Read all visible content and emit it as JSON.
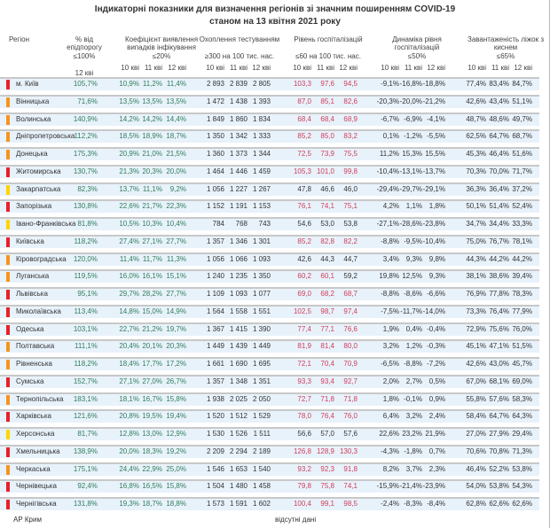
{
  "title_line1": "Індикаторні показники для визначення регіонів зі значним поширенням COVID-19",
  "title_line2": "станом на 13 квітня 2021 року",
  "headers": {
    "region": "Регіон",
    "epi": "% від епідпорогу",
    "epi_norm": "≤100%",
    "epi_day": "12 кві",
    "coef": "Коефіцієнт виявлення випадків інфікування",
    "coef_norm": "≤20%",
    "test": "Охоплення тестуванням",
    "test_norm": "≥300 на 100 тис. нас.",
    "hosp": "Рівень госпіталізацій",
    "hosp_norm": "≤60 на 100 тис. нас.",
    "dyn": "Динаміка рівня госпіталізацій",
    "dyn_norm": "≤50%",
    "beds": "Завантаженість ліжок з киснем",
    "beds_norm": "≤65%",
    "days": [
      "10 кві",
      "11 кві",
      "12 кві"
    ]
  },
  "colors": {
    "red": "#e8202a",
    "orange": "#f7941d",
    "yellow": "#ffd500",
    "good_text": "#2f7d5a",
    "bad_text": "#d23c5a"
  },
  "rows": [
    {
      "region": "м. Київ",
      "level": "red",
      "epi": "105,7%",
      "coef": [
        "10,9%",
        "11,2%",
        "11,4%"
      ],
      "test": [
        "2 893",
        "2 839",
        "2 805"
      ],
      "hosp": [
        "103,3",
        "97,6",
        "94,5"
      ],
      "dyn": [
        "-9,1%",
        "-16,8%",
        "-18,8%"
      ],
      "beds": [
        "77,4%",
        "83,4%",
        "84,7%"
      ]
    },
    {
      "region": "Вінницька",
      "level": "orange",
      "epi": "71,6%",
      "coef": [
        "13,5%",
        "13,5%",
        "13,5%"
      ],
      "test": [
        "1 472",
        "1 438",
        "1 393"
      ],
      "hosp": [
        "87,0",
        "85,1",
        "82,6"
      ],
      "dyn": [
        "-20,3%",
        "-20,0%",
        "-21,2%"
      ],
      "beds": [
        "42,6%",
        "43,4%",
        "51,1%"
      ]
    },
    {
      "region": "Волинська",
      "level": "orange",
      "epi": "140,9%",
      "coef": [
        "14,2%",
        "14,2%",
        "14,4%"
      ],
      "test": [
        "1 849",
        "1 860",
        "1 834"
      ],
      "hosp": [
        "68,4",
        "68,4",
        "68,9"
      ],
      "dyn": [
        "-6,7%",
        "-6,9%",
        "-4,1%"
      ],
      "beds": [
        "48,7%",
        "48,6%",
        "49,7%"
      ]
    },
    {
      "region": "Дніпропетровська",
      "level": "orange",
      "epi": "112,2%",
      "coef": [
        "18,5%",
        "18,9%",
        "18,7%"
      ],
      "test": [
        "1 350",
        "1 342",
        "1 333"
      ],
      "hosp": [
        "85,2",
        "85,0",
        "83,2"
      ],
      "dyn": [
        "0,1%",
        "-1,2%",
        "-5,5%"
      ],
      "beds": [
        "62,5%",
        "64,7%",
        "68,7%"
      ]
    },
    {
      "region": "Донецька",
      "level": "orange",
      "epi": "175,3%",
      "coef": [
        "20,9%",
        "21,0%",
        "21,5%"
      ],
      "test": [
        "1 360",
        "1 373",
        "1 344"
      ],
      "hosp": [
        "72,5",
        "73,9",
        "75,5"
      ],
      "dyn": [
        "11,2%",
        "15,3%",
        "15,5%"
      ],
      "beds": [
        "45,3%",
        "46,4%",
        "51,6%"
      ]
    },
    {
      "region": "Житомирська",
      "level": "red",
      "epi": "130,7%",
      "coef": [
        "21,3%",
        "20,3%",
        "20,0%"
      ],
      "test": [
        "1 464",
        "1 446",
        "1 459"
      ],
      "hosp": [
        "105,3",
        "101,0",
        "99,8"
      ],
      "dyn": [
        "-10,4%",
        "-13,1%",
        "-13,7%"
      ],
      "beds": [
        "70,3%",
        "70,0%",
        "71,7%"
      ]
    },
    {
      "region": "Закарпатська",
      "level": "yellow",
      "epi": "82,3%",
      "coef": [
        "13,7%",
        "11,1%",
        "9,2%"
      ],
      "test": [
        "1 056",
        "1 227",
        "1 267"
      ],
      "hosp": [
        "47,8",
        "46,6",
        "46,0"
      ],
      "dyn": [
        "-29,4%",
        "-29,7%",
        "-29,1%"
      ],
      "beds": [
        "36,3%",
        "36,4%",
        "37,2%"
      ]
    },
    {
      "region": "Запорізька",
      "level": "red",
      "epi": "130,8%",
      "coef": [
        "22,6%",
        "21,7%",
        "22,3%"
      ],
      "test": [
        "1 152",
        "1 191",
        "1 153"
      ],
      "hosp": [
        "76,1",
        "74,1",
        "75,1"
      ],
      "dyn": [
        "4,2%",
        "1,1%",
        "1,8%"
      ],
      "beds": [
        "50,1%",
        "51,4%",
        "52,4%"
      ]
    },
    {
      "region": "Івано-Франківська",
      "level": "yellow",
      "epi": "81,8%",
      "coef": [
        "10,5%",
        "10,3%",
        "10,4%"
      ],
      "test": [
        "784",
        "768",
        "743"
      ],
      "hosp": [
        "54,6",
        "53,0",
        "53,8"
      ],
      "dyn": [
        "-27,1%",
        "-28,6%",
        "-23,8%"
      ],
      "beds": [
        "34,7%",
        "34,4%",
        "33,3%"
      ]
    },
    {
      "region": "Київська",
      "level": "red",
      "epi": "118,2%",
      "coef": [
        "27,4%",
        "27,1%",
        "27,7%"
      ],
      "test": [
        "1 357",
        "1 346",
        "1 301"
      ],
      "hosp": [
        "85,2",
        "82,8",
        "82,2"
      ],
      "dyn": [
        "-8,8%",
        "-9,5%",
        "-10,4%"
      ],
      "beds": [
        "75,0%",
        "76,7%",
        "78,1%"
      ]
    },
    {
      "region": "Кіровоградська",
      "level": "orange",
      "epi": "120,0%",
      "coef": [
        "11,4%",
        "11,7%",
        "11,3%"
      ],
      "test": [
        "1 056",
        "1 066",
        "1 093"
      ],
      "hosp": [
        "42,6",
        "44,3",
        "44,7"
      ],
      "dyn": [
        "3,4%",
        "9,3%",
        "9,8%"
      ],
      "beds": [
        "44,3%",
        "44,2%",
        "44,2%"
      ]
    },
    {
      "region": "Луганська",
      "level": "orange",
      "epi": "119,5%",
      "coef": [
        "16,0%",
        "16,1%",
        "15,1%"
      ],
      "test": [
        "1 240",
        "1 235",
        "1 350"
      ],
      "hosp": [
        "60,2",
        "60,1",
        "59,2"
      ],
      "dyn": [
        "19,8%",
        "12,5%",
        "9,3%"
      ],
      "beds": [
        "38,1%",
        "38,6%",
        "39,4%"
      ]
    },
    {
      "region": "Львівська",
      "level": "red",
      "epi": "95,1%",
      "coef": [
        "29,7%",
        "28,2%",
        "27,7%"
      ],
      "test": [
        "1 109",
        "1 093",
        "1 077"
      ],
      "hosp": [
        "69,0",
        "68,2",
        "68,7"
      ],
      "dyn": [
        "-8,8%",
        "-8,6%",
        "-6,6%"
      ],
      "beds": [
        "76,9%",
        "77,8%",
        "78,3%"
      ]
    },
    {
      "region": "Миколаївська",
      "level": "red",
      "epi": "113,4%",
      "coef": [
        "14,8%",
        "15,0%",
        "14,9%"
      ],
      "test": [
        "1 564",
        "1 558",
        "1 551"
      ],
      "hosp": [
        "102,5",
        "98,7",
        "97,4"
      ],
      "dyn": [
        "-7,5%",
        "-11,7%",
        "-14,0%"
      ],
      "beds": [
        "73,3%",
        "76,4%",
        "77,9%"
      ]
    },
    {
      "region": "Одеська",
      "level": "red",
      "epi": "103,1%",
      "coef": [
        "22,7%",
        "21,2%",
        "19,7%"
      ],
      "test": [
        "1 367",
        "1 415",
        "1 390"
      ],
      "hosp": [
        "77,4",
        "77,1",
        "76,6"
      ],
      "dyn": [
        "1,9%",
        "0,4%",
        "-0,4%"
      ],
      "beds": [
        "72,9%",
        "75,6%",
        "76,0%"
      ]
    },
    {
      "region": "Полтавська",
      "level": "orange",
      "epi": "111,1%",
      "coef": [
        "20,4%",
        "20,1%",
        "20,3%"
      ],
      "test": [
        "1 449",
        "1 439",
        "1 449"
      ],
      "hosp": [
        "81,9",
        "81,4",
        "80,0"
      ],
      "dyn": [
        "3,2%",
        "1,2%",
        "-0,3%"
      ],
      "beds": [
        "45,1%",
        "47,1%",
        "51,5%"
      ]
    },
    {
      "region": "Рівненська",
      "level": "orange",
      "epi": "118,2%",
      "coef": [
        "18,4%",
        "17,7%",
        "17,2%"
      ],
      "test": [
        "1 661",
        "1 690",
        "1 695"
      ],
      "hosp": [
        "72,1",
        "70,4",
        "70,9"
      ],
      "dyn": [
        "-6,5%",
        "-8,8%",
        "-7,2%"
      ],
      "beds": [
        "42,6%",
        "43,0%",
        "45,7%"
      ]
    },
    {
      "region": "Сумська",
      "level": "red",
      "epi": "152,7%",
      "coef": [
        "27,1%",
        "27,0%",
        "26,7%"
      ],
      "test": [
        "1 357",
        "1 348",
        "1 351"
      ],
      "hosp": [
        "93,3",
        "93,4",
        "92,7"
      ],
      "dyn": [
        "2,0%",
        "2,7%",
        "0,5%"
      ],
      "beds": [
        "67,0%",
        "68,1%",
        "69,0%"
      ]
    },
    {
      "region": "Тернопільська",
      "level": "orange",
      "epi": "183,1%",
      "coef": [
        "18,1%",
        "16,7%",
        "15,8%"
      ],
      "test": [
        "1 938",
        "2 025",
        "2 050"
      ],
      "hosp": [
        "72,7",
        "71,8",
        "71,8"
      ],
      "dyn": [
        "1,8%",
        "-0,1%",
        "0,9%"
      ],
      "beds": [
        "55,8%",
        "57,6%",
        "58,3%"
      ]
    },
    {
      "region": "Харківська",
      "level": "red",
      "epi": "121,6%",
      "coef": [
        "20,8%",
        "19,5%",
        "19,4%"
      ],
      "test": [
        "1 520",
        "1 512",
        "1 529"
      ],
      "hosp": [
        "78,0",
        "76,4",
        "76,0"
      ],
      "dyn": [
        "6,4%",
        "3,2%",
        "2,4%"
      ],
      "beds": [
        "58,4%",
        "64,7%",
        "64,3%"
      ]
    },
    {
      "region": "Херсонська",
      "level": "yellow",
      "epi": "81,7%",
      "coef": [
        "12,8%",
        "13,0%",
        "12,9%"
      ],
      "test": [
        "1 530",
        "1 526",
        "1 511"
      ],
      "hosp": [
        "56,6",
        "57,0",
        "57,6"
      ],
      "dyn": [
        "22,6%",
        "23,2%",
        "21,9%"
      ],
      "beds": [
        "27,0%",
        "27,9%",
        "29,4%"
      ]
    },
    {
      "region": "Хмельницька",
      "level": "red",
      "epi": "138,9%",
      "coef": [
        "20,0%",
        "18,3%",
        "19,2%"
      ],
      "test": [
        "2 209",
        "2 294",
        "2 189"
      ],
      "hosp": [
        "126,8",
        "128,9",
        "130,3"
      ],
      "dyn": [
        "-4,3%",
        "-1,8%",
        "0,7%"
      ],
      "beds": [
        "70,6%",
        "70,8%",
        "71,3%"
      ]
    },
    {
      "region": "Черкаська",
      "level": "orange",
      "epi": "175,1%",
      "coef": [
        "24,4%",
        "22,9%",
        "25,0%"
      ],
      "test": [
        "1 546",
        "1 653",
        "1 540"
      ],
      "hosp": [
        "93,2",
        "92,3",
        "91,8"
      ],
      "dyn": [
        "8,2%",
        "3,7%",
        "2,3%"
      ],
      "beds": [
        "46,4%",
        "52,2%",
        "53,8%"
      ]
    },
    {
      "region": "Чернівецька",
      "level": "red",
      "epi": "92,4%",
      "coef": [
        "16,8%",
        "16,5%",
        "15,8%"
      ],
      "test": [
        "1 504",
        "1 480",
        "1 458"
      ],
      "hosp": [
        "79,8",
        "75,8",
        "74,1"
      ],
      "dyn": [
        "-15,9%",
        "-21,4%",
        "-23,9%"
      ],
      "beds": [
        "54,0%",
        "53,8%",
        "54,3%"
      ]
    },
    {
      "region": "Чернігівська",
      "level": "red",
      "epi": "131,8%",
      "coef": [
        "19,3%",
        "18,7%",
        "18,8%"
      ],
      "test": [
        "1 573",
        "1 591",
        "1 602"
      ],
      "hosp": [
        "100,4",
        "99,1",
        "98,5"
      ],
      "dyn": [
        "-2,4%",
        "-8,3%",
        "-8,4%"
      ],
      "beds": [
        "62,8%",
        "62,6%",
        "62,6%"
      ]
    }
  ],
  "footer": {
    "region": "АР Крим",
    "note": "відсутні дані"
  }
}
